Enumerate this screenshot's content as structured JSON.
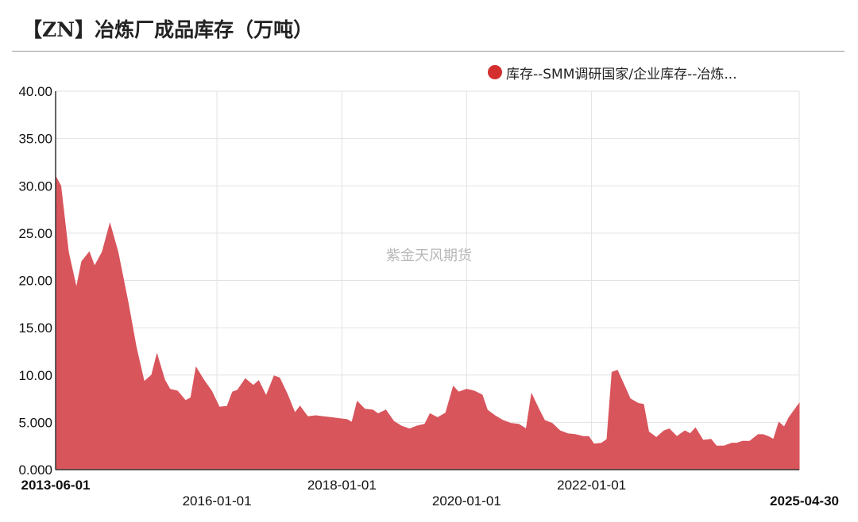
{
  "title": "【ZN】冶炼厂成品库存（万吨）",
  "watermark": "紫金天风期货",
  "colors": {
    "series": "#d32f2f",
    "fill": "#d9555c",
    "grid": "#e2e2e2"
  },
  "chart_data": {
    "type": "area",
    "title": "【ZN】冶炼厂成品库存（万吨）",
    "ylim": [
      0,
      40
    ],
    "y_ticks": [
      "0.000",
      "5.000",
      "10.00",
      "15.00",
      "20.00",
      "25.00",
      "30.00",
      "35.00",
      "40.00"
    ],
    "y_tick_values": [
      0,
      5,
      10,
      15,
      20,
      25,
      30,
      35,
      40
    ],
    "x_range": [
      "2013-06-01",
      "2025-04-30"
    ],
    "x_ticks": [
      {
        "label": "2013-06-01",
        "date": "2013-06-01",
        "bold": true
      },
      {
        "label": "2016-01-01",
        "date": "2016-01-01",
        "bold": false
      },
      {
        "label": "2018-01-01",
        "date": "2018-01-01",
        "bold": false
      },
      {
        "label": "2020-01-01",
        "date": "2020-01-01",
        "bold": false
      },
      {
        "label": "2022-01-01",
        "date": "2022-01-01",
        "bold": false
      },
      {
        "label": "2025-04-30",
        "date": "2025-04-30",
        "bold": true
      }
    ],
    "legend_position": "top-right",
    "grid": true,
    "series": [
      {
        "name": "库存--SMM调研国家/企业库存--冶炼...",
        "points": [
          [
            "2013-06-01",
            31.0
          ],
          [
            "2013-07-01",
            30.0
          ],
          [
            "2013-08-15",
            23.0
          ],
          [
            "2013-10-01",
            19.2
          ],
          [
            "2013-11-01",
            22.0
          ],
          [
            "2013-12-15",
            23.0
          ],
          [
            "2014-01-15",
            21.5
          ],
          [
            "2014-03-01",
            23.0
          ],
          [
            "2014-04-15",
            26.0
          ],
          [
            "2014-06-01",
            23.0
          ],
          [
            "2014-08-01",
            17.5
          ],
          [
            "2014-09-15",
            13.0
          ],
          [
            "2014-11-01",
            9.3
          ],
          [
            "2014-12-15",
            10.0
          ],
          [
            "2015-01-15",
            12.2
          ],
          [
            "2015-03-01",
            9.5
          ],
          [
            "2015-04-01",
            8.5
          ],
          [
            "2015-05-15",
            8.3
          ],
          [
            "2015-07-01",
            7.3
          ],
          [
            "2015-08-01",
            7.6
          ],
          [
            "2015-09-01",
            10.8
          ],
          [
            "2015-10-15",
            9.5
          ],
          [
            "2015-12-01",
            8.3
          ],
          [
            "2016-01-15",
            6.6
          ],
          [
            "2016-03-01",
            6.7
          ],
          [
            "2016-04-01",
            8.2
          ],
          [
            "2016-05-01",
            8.4
          ],
          [
            "2016-06-15",
            9.6
          ],
          [
            "2016-08-01",
            8.9
          ],
          [
            "2016-09-01",
            9.4
          ],
          [
            "2016-10-15",
            7.8
          ],
          [
            "2016-12-01",
            9.9
          ],
          [
            "2017-01-01",
            9.7
          ],
          [
            "2017-02-15",
            8.0
          ],
          [
            "2017-04-01",
            6.0
          ],
          [
            "2017-05-01",
            6.7
          ],
          [
            "2017-06-15",
            5.6
          ],
          [
            "2017-08-01",
            5.7
          ],
          [
            "2017-09-15",
            5.6
          ],
          [
            "2017-11-01",
            5.5
          ],
          [
            "2017-12-15",
            5.4
          ],
          [
            "2018-02-01",
            5.3
          ],
          [
            "2018-03-01",
            5.0
          ],
          [
            "2018-04-01",
            7.2
          ],
          [
            "2018-05-15",
            6.4
          ],
          [
            "2018-07-01",
            6.3
          ],
          [
            "2018-08-01",
            5.9
          ],
          [
            "2018-09-15",
            6.3
          ],
          [
            "2018-11-01",
            5.1
          ],
          [
            "2018-12-15",
            4.6
          ],
          [
            "2019-02-01",
            4.3
          ],
          [
            "2019-03-15",
            4.6
          ],
          [
            "2019-05-01",
            4.8
          ],
          [
            "2019-06-01",
            5.9
          ],
          [
            "2019-07-15",
            5.5
          ],
          [
            "2019-09-01",
            6.0
          ],
          [
            "2019-10-15",
            8.8
          ],
          [
            "2019-11-15",
            8.2
          ],
          [
            "2020-01-01",
            8.5
          ],
          [
            "2020-02-15",
            8.3
          ],
          [
            "2020-04-01",
            7.9
          ],
          [
            "2020-05-01",
            6.3
          ],
          [
            "2020-06-15",
            5.7
          ],
          [
            "2020-08-01",
            5.2
          ],
          [
            "2020-09-15",
            4.9
          ],
          [
            "2020-11-01",
            4.8
          ],
          [
            "2020-12-15",
            4.3
          ],
          [
            "2021-01-15",
            8.0
          ],
          [
            "2021-03-01",
            6.3
          ],
          [
            "2021-04-01",
            5.2
          ],
          [
            "2021-05-15",
            4.9
          ],
          [
            "2021-07-01",
            4.1
          ],
          [
            "2021-08-15",
            3.8
          ],
          [
            "2021-10-01",
            3.7
          ],
          [
            "2021-11-15",
            3.5
          ],
          [
            "2021-12-15",
            3.5
          ],
          [
            "2022-01-15",
            2.7
          ],
          [
            "2022-03-01",
            2.8
          ],
          [
            "2022-04-01",
            3.2
          ],
          [
            "2022-05-01",
            10.3
          ],
          [
            "2022-06-01",
            10.5
          ],
          [
            "2022-07-01",
            9.3
          ],
          [
            "2022-08-15",
            7.5
          ],
          [
            "2022-10-01",
            7.0
          ],
          [
            "2022-11-01",
            6.9
          ],
          [
            "2022-12-01",
            4.0
          ],
          [
            "2023-01-15",
            3.4
          ],
          [
            "2023-03-01",
            4.1
          ],
          [
            "2023-04-01",
            4.3
          ],
          [
            "2023-05-15",
            3.5
          ],
          [
            "2023-07-01",
            4.1
          ],
          [
            "2023-08-01",
            3.8
          ],
          [
            "2023-09-01",
            4.4
          ],
          [
            "2023-10-15",
            3.1
          ],
          [
            "2023-12-01",
            3.2
          ],
          [
            "2024-01-01",
            2.5
          ],
          [
            "2024-02-15",
            2.5
          ],
          [
            "2024-04-01",
            2.8
          ],
          [
            "2024-05-01",
            2.8
          ],
          [
            "2024-06-01",
            3.0
          ],
          [
            "2024-07-15",
            3.0
          ],
          [
            "2024-09-01",
            3.7
          ],
          [
            "2024-10-01",
            3.7
          ],
          [
            "2024-11-01",
            3.5
          ],
          [
            "2024-12-01",
            3.2
          ],
          [
            "2025-01-01",
            5.0
          ],
          [
            "2025-02-01",
            4.5
          ],
          [
            "2025-03-01",
            5.5
          ],
          [
            "2025-04-30",
            7.0
          ]
        ]
      }
    ]
  },
  "legend_label": "库存--SMM调研国家/企业库存--冶炼..."
}
